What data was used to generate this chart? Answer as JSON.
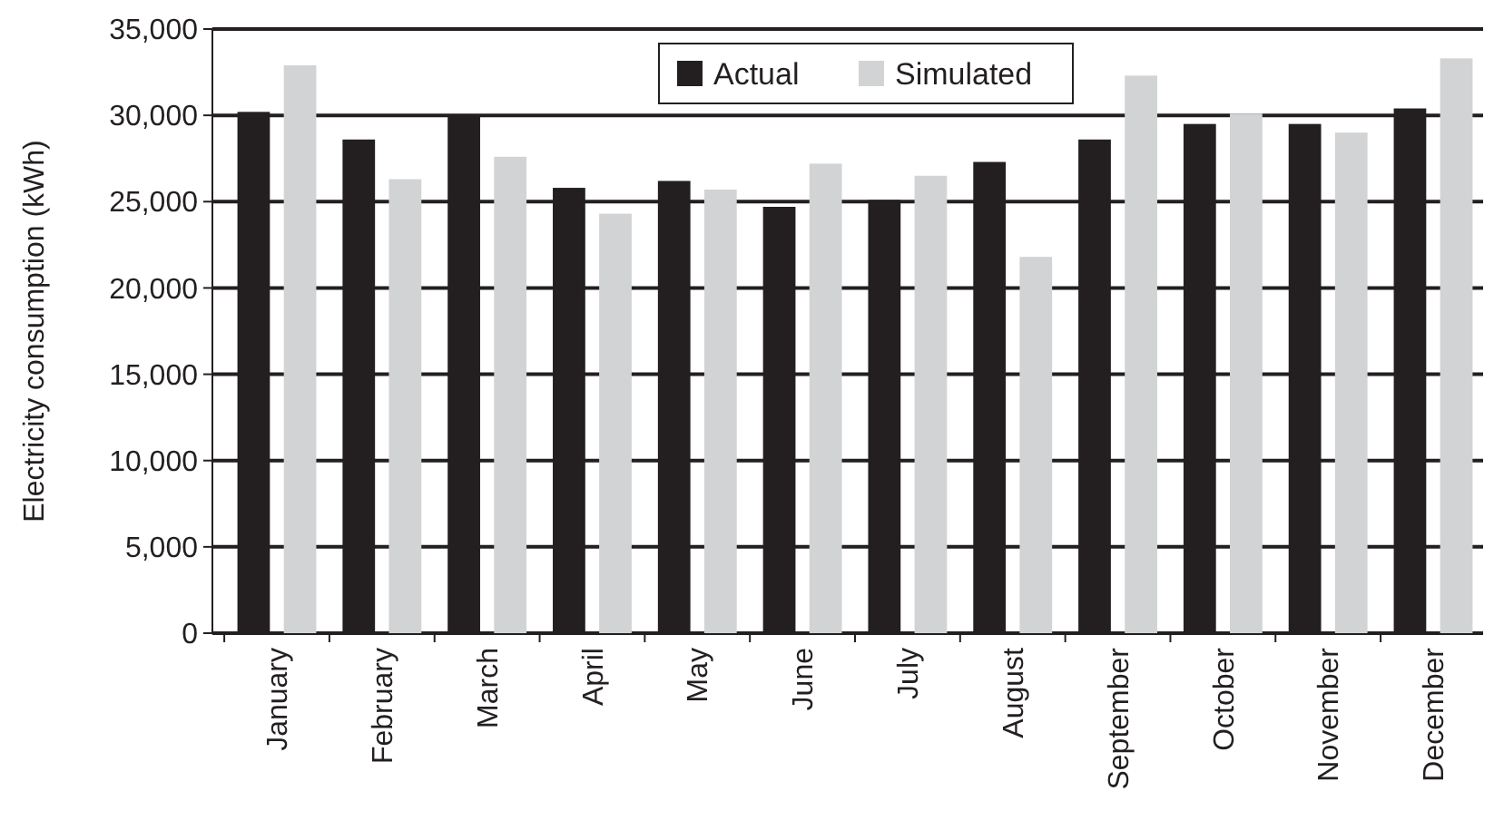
{
  "chart_data": {
    "type": "bar",
    "ylabel": "Electricity consumption (kWh)",
    "categories": [
      "January",
      "February",
      "March",
      "April",
      "May",
      "June",
      "July",
      "August",
      "September",
      "October",
      "November",
      "December"
    ],
    "series": [
      {
        "name": "Actual",
        "color": "#231f20",
        "values": [
          30200,
          28600,
          30000,
          25800,
          26200,
          24700,
          25100,
          27300,
          28600,
          29500,
          29500,
          30400
        ]
      },
      {
        "name": "Simulated",
        "color": "#d1d3d4",
        "values": [
          32900,
          26300,
          27600,
          24300,
          25700,
          27200,
          26500,
          21800,
          32300,
          30100,
          29000,
          33300
        ]
      }
    ],
    "ylim": [
      0,
      35000
    ],
    "yticks": [
      {
        "value": 0,
        "label": "0"
      },
      {
        "value": 5000,
        "label": "5,000"
      },
      {
        "value": 10000,
        "label": "10,000"
      },
      {
        "value": 15000,
        "label": "15,000"
      },
      {
        "value": 20000,
        "label": "20,000"
      },
      {
        "value": 25000,
        "label": "25,000"
      },
      {
        "value": 30000,
        "label": "30,000"
      },
      {
        "value": 35000,
        "label": "35,000"
      }
    ],
    "grid": "y",
    "legend": "top"
  }
}
